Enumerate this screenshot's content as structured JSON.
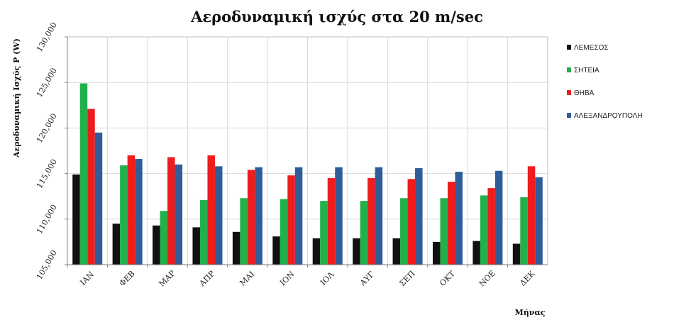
{
  "chart_data": {
    "type": "bar",
    "title": "Αεροδυναμική ισχύς στα 20 m/sec",
    "xlabel": "Μήνας",
    "ylabel": "Αεροδυναμική Ισχύς P (W)",
    "ylim": [
      105000,
      130000
    ],
    "yticks": [
      105000,
      110000,
      115000,
      120000,
      125000,
      130000
    ],
    "ytick_labels": [
      "105,000",
      "110,000",
      "115,000",
      "120,000",
      "125,000",
      "130,000"
    ],
    "grid": true,
    "legend_position": "right",
    "categories": [
      "ΙΑΝ",
      "ΦΕΒ",
      "ΜΑΡ",
      "ΑΠΡ",
      "ΜΑΙ",
      "ΙΟΝ",
      "ΙΟΛ",
      "ΑΥΓ",
      "ΣΕΠ",
      "ΟΚΤ",
      "ΝΟΕ",
      "ΔΕΚ"
    ],
    "series": [
      {
        "name": "ΛΕΜΕΣΟΣ",
        "color": "#111111",
        "values": [
          114900,
          109500,
          109300,
          109100,
          108600,
          108100,
          107900,
          107900,
          107900,
          107500,
          107600,
          107300
        ]
      },
      {
        "name": "ΣΗΤΕΙΑ",
        "color": "#22b04b",
        "values": [
          124900,
          115900,
          110900,
          112100,
          112300,
          112200,
          112000,
          112000,
          112300,
          112300,
          112600,
          112400
        ]
      },
      {
        "name": "ΘΗΒΑ",
        "color": "#ee1c1c",
        "values": [
          122100,
          117000,
          116800,
          117000,
          115400,
          114800,
          114500,
          114500,
          114400,
          114100,
          113400,
          115800
        ]
      },
      {
        "name": "ΑΛΕΞΑΝΔΡΟΥΠΟΛΗ",
        "color": "#2f5d9a",
        "values": [
          119500,
          116600,
          116000,
          115800,
          115700,
          115700,
          115700,
          115700,
          115600,
          115200,
          115300,
          114600
        ]
      }
    ]
  }
}
